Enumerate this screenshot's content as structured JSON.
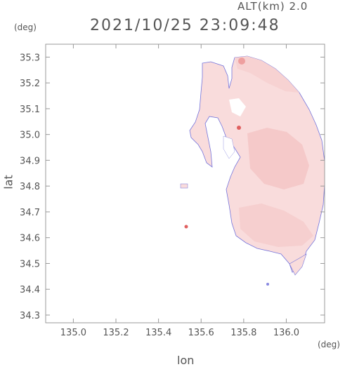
{
  "header": {
    "altitude_label": "ALT(km)  2.0",
    "timestamp": "2021/10/25 23:09:48"
  },
  "axes": {
    "y_unit": "(deg)",
    "x_unit": "(deg)",
    "y_label": "lat",
    "x_label": "lon"
  },
  "chart_data": {
    "type": "heatmap",
    "title": "2021/10/25 23:09:48",
    "xlabel": "lon",
    "ylabel": "lat",
    "xlim": [
      134.87,
      136.18
    ],
    "ylim": [
      34.27,
      35.35
    ],
    "x_ticks": [
      "135.0",
      "135.2",
      "135.4",
      "135.6",
      "135.8",
      "136.0"
    ],
    "x_tick_values": [
      135.0,
      135.2,
      135.4,
      135.6,
      135.8,
      136.0
    ],
    "y_ticks": [
      "35.3",
      "35.2",
      "35.1",
      "35.0",
      "34.9",
      "34.8",
      "34.7",
      "34.6",
      "34.5",
      "34.4",
      "34.3"
    ],
    "y_tick_values": [
      35.3,
      35.2,
      35.1,
      35.0,
      34.9,
      34.8,
      34.7,
      34.6,
      34.5,
      34.4,
      34.3
    ],
    "grid": false,
    "colors": {
      "field": "#f9dcdc",
      "field_strong": "#f3b8b8",
      "edge": "#6b6bd8",
      "text": "#555555"
    }
  }
}
